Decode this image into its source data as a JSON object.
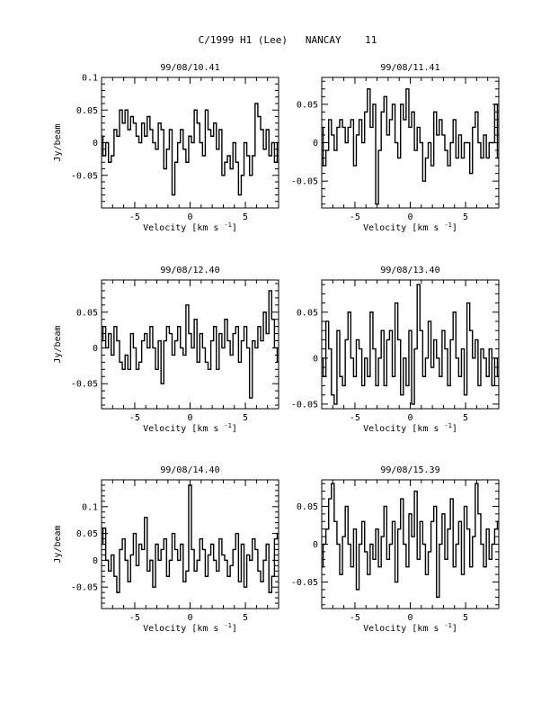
{
  "figure": {
    "title": "C/1999 H1 (Lee)   NANCAY    11"
  },
  "chart_data": [
    {
      "type": "line",
      "step": true,
      "title": "99/08/10.41",
      "xlabel": "Velocity [km s",
      "xlabel_sup": "-1",
      "xlabel_close": "]",
      "ylabel": "Jy/beam",
      "xlim": [
        -8,
        8
      ],
      "ylim": [
        -0.1,
        0.1
      ],
      "xticks": [
        -5,
        0,
        5
      ],
      "yticks": [
        0.1,
        0.05,
        0,
        -0.05
      ],
      "ytick_labels": [
        "0.1",
        "0.05",
        "0",
        "-0.05"
      ],
      "series": [
        {
          "x_start": -8,
          "x_step": 0.25,
          "values": [
            0.01,
            -0.02,
            0.0,
            -0.03,
            -0.02,
            0.02,
            0.01,
            0.05,
            0.03,
            0.05,
            0.02,
            0.04,
            0.03,
            0.01,
            0.0,
            0.03,
            0.01,
            0.04,
            0.02,
            0.0,
            -0.01,
            0.03,
            0.02,
            -0.04,
            -0.01,
            0.02,
            -0.08,
            -0.03,
            0.0,
            0.02,
            -0.01,
            -0.03,
            0.01,
            0.0,
            0.05,
            0.03,
            0.0,
            -0.02,
            0.05,
            0.02,
            0.01,
            0.03,
            -0.01,
            0.02,
            -0.05,
            -0.03,
            -0.02,
            -0.04,
            0.0,
            -0.03,
            -0.08,
            -0.05,
            0.0,
            -0.02,
            -0.05,
            -0.02,
            0.06,
            0.04,
            0.02,
            -0.01,
            0.02,
            -0.02,
            0.0,
            -0.03,
            0.0
          ]
        }
      ]
    },
    {
      "type": "line",
      "step": true,
      "title": "99/08/11.41",
      "xlabel": "Velocity [km s",
      "xlabel_sup": "-1",
      "xlabel_close": "]",
      "ylabel": "",
      "xlim": [
        -8,
        8
      ],
      "ylim": [
        -0.085,
        0.085
      ],
      "xticks": [
        -5,
        0,
        5
      ],
      "yticks": [
        0.05,
        0,
        -0.05
      ],
      "ytick_labels": [
        "0.05",
        "0",
        "-0.05"
      ],
      "series": [
        {
          "x_start": -8,
          "x_step": 0.25,
          "values": [
            0.02,
            -0.03,
            -0.01,
            0.03,
            0.01,
            -0.01,
            0.02,
            0.03,
            0.02,
            0.0,
            0.02,
            0.03,
            -0.03,
            0.01,
            0.03,
            0.0,
            0.04,
            0.07,
            0.02,
            0.05,
            -0.08,
            -0.01,
            0.04,
            0.06,
            0.01,
            0.03,
            0.05,
            0.0,
            -0.02,
            0.05,
            0.03,
            0.07,
            0.02,
            0.04,
            -0.01,
            0.02,
            0.0,
            -0.05,
            -0.02,
            0.0,
            -0.03,
            0.04,
            0.01,
            0.03,
            0.01,
            -0.01,
            -0.03,
            0.0,
            0.03,
            -0.02,
            0.01,
            -0.02,
            0.0,
            0.0,
            -0.04,
            0.02,
            0.04,
            0.0,
            -0.02,
            0.01,
            -0.02,
            0.0,
            0.0,
            0.05,
            -0.02
          ]
        }
      ]
    },
    {
      "type": "line",
      "step": true,
      "title": "99/08/12.40",
      "xlabel": "Velocity [km s",
      "xlabel_sup": "-1",
      "xlabel_close": "]",
      "ylabel": "Jy/beam",
      "xlim": [
        -8,
        8
      ],
      "ylim": [
        -0.085,
        0.095
      ],
      "xticks": [
        -5,
        0,
        5
      ],
      "yticks": [
        0.05,
        0,
        -0.05
      ],
      "ytick_labels": [
        "0.05",
        "0",
        "-0.05"
      ],
      "series": [
        {
          "x_start": -8,
          "x_step": 0.25,
          "values": [
            0.01,
            0.03,
            0.0,
            0.02,
            -0.01,
            0.03,
            0.01,
            -0.02,
            -0.03,
            -0.01,
            -0.03,
            0.02,
            0.0,
            -0.03,
            -0.02,
            0.01,
            0.02,
            0.0,
            0.03,
            0.0,
            -0.03,
            0.01,
            -0.05,
            0.01,
            0.03,
            0.02,
            -0.01,
            0.01,
            0.03,
            0.0,
            -0.01,
            0.06,
            0.02,
            0.0,
            0.04,
            -0.02,
            0.02,
            0.0,
            -0.02,
            -0.03,
            0.01,
            0.03,
            -0.03,
            0.02,
            0.0,
            0.04,
            0.01,
            -0.01,
            0.02,
            0.03,
            -0.02,
            0.01,
            0.03,
            0.0,
            -0.07,
            0.01,
            0.0,
            0.03,
            0.01,
            0.05,
            0.02,
            0.08,
            0.04,
            0.0,
            -0.02
          ]
        }
      ]
    },
    {
      "type": "line",
      "step": true,
      "title": "99/08/13.40",
      "xlabel": "Velocity [km s",
      "xlabel_sup": "-1",
      "xlabel_close": "]",
      "ylabel": "",
      "xlim": [
        -8,
        8
      ],
      "ylim": [
        -0.055,
        0.085
      ],
      "xticks": [
        -5,
        0,
        5
      ],
      "yticks": [
        0.05,
        0,
        -0.05
      ],
      "ytick_labels": [
        "0.05",
        "0",
        "-0.05"
      ],
      "series": [
        {
          "x_start": -8,
          "x_step": 0.25,
          "values": [
            0.0,
            -0.02,
            0.04,
            0.01,
            -0.04,
            -0.05,
            0.03,
            -0.02,
            -0.03,
            0.02,
            0.05,
            0.0,
            -0.02,
            0.02,
            0.01,
            -0.03,
            0.0,
            -0.02,
            0.05,
            0.01,
            -0.03,
            0.0,
            0.03,
            -0.03,
            0.02,
            0.03,
            -0.02,
            0.06,
            0.02,
            -0.04,
            0.0,
            -0.03,
            0.03,
            -0.05,
            0.01,
            0.08,
            0.03,
            -0.02,
            0.0,
            0.04,
            -0.01,
            0.02,
            0.0,
            -0.02,
            0.03,
            0.01,
            -0.03,
            0.02,
            0.05,
            0.0,
            -0.02,
            0.01,
            -0.04,
            0.06,
            0.03,
            0.0,
            0.02,
            -0.03,
            0.01,
            0.0,
            -0.02,
            0.01,
            -0.03,
            0.0,
            -0.02
          ]
        }
      ]
    },
    {
      "type": "line",
      "step": true,
      "title": "99/08/14.40",
      "xlabel": "Velocity [km s",
      "xlabel_sup": "-1",
      "xlabel_close": "]",
      "ylabel": "Jy/beam",
      "xlim": [
        -8,
        8
      ],
      "ylim": [
        -0.09,
        0.15
      ],
      "xticks": [
        -5,
        0,
        5
      ],
      "yticks": [
        0.1,
        0.05,
        0,
        -0.05
      ],
      "ytick_labels": [
        "0.1",
        "0.05",
        "0",
        "-0.05"
      ],
      "series": [
        {
          "x_start": -8,
          "x_step": 0.25,
          "values": [
            0.03,
            0.06,
            0.0,
            -0.02,
            0.01,
            -0.03,
            -0.06,
            0.02,
            0.04,
            0.0,
            -0.04,
            0.01,
            0.05,
            -0.01,
            0.03,
            0.02,
            0.08,
            -0.02,
            0.0,
            -0.05,
            0.03,
            0.0,
            0.02,
            0.04,
            -0.03,
            0.0,
            0.05,
            0.02,
            0.0,
            0.03,
            -0.04,
            -0.02,
            0.14,
            0.02,
            -0.02,
            0.0,
            0.04,
            0.02,
            -0.03,
            0.01,
            0.03,
            0.0,
            -0.02,
            0.04,
            0.01,
            0.0,
            -0.03,
            -0.01,
            0.02,
            0.05,
            -0.04,
            0.03,
            -0.05,
            0.01,
            0.0,
            0.04,
            0.02,
            -0.02,
            -0.04,
            0.0,
            0.03,
            -0.06,
            -0.03,
            0.04,
            0.05
          ]
        }
      ]
    },
    {
      "type": "line",
      "step": true,
      "title": "99/08/15.39",
      "xlabel": "Velocity [km s",
      "xlabel_sup": "-1",
      "xlabel_close": "]",
      "ylabel": "",
      "xlim": [
        -8,
        8
      ],
      "ylim": [
        -0.085,
        0.085
      ],
      "xticks": [
        -5,
        0,
        5
      ],
      "yticks": [
        0.05,
        0,
        -0.05
      ],
      "ytick_labels": [
        "0.05",
        "0",
        "-0.05"
      ],
      "series": [
        {
          "x_start": -8,
          "x_step": 0.25,
          "values": [
            -0.03,
            0.0,
            0.02,
            0.06,
            0.08,
            0.03,
            0.0,
            -0.04,
            0.01,
            0.05,
            0.0,
            -0.03,
            0.02,
            -0.06,
            0.0,
            0.03,
            -0.01,
            -0.04,
            0.0,
            -0.02,
            0.02,
            -0.03,
            0.01,
            0.05,
            -0.02,
            0.0,
            0.03,
            -0.05,
            0.02,
            0.06,
            0.0,
            -0.03,
            0.04,
            0.01,
            0.07,
            -0.02,
            0.03,
            0.0,
            -0.04,
            -0.01,
            0.03,
            0.05,
            -0.07,
            0.0,
            0.04,
            -0.02,
            0.02,
            0.06,
            -0.03,
            0.0,
            0.03,
            -0.04,
            0.05,
            0.02,
            -0.03,
            0.01,
            0.08,
            0.04,
            0.0,
            -0.03,
            0.02,
            -0.02,
            0.0,
            0.02,
            0.03
          ]
        }
      ]
    }
  ]
}
